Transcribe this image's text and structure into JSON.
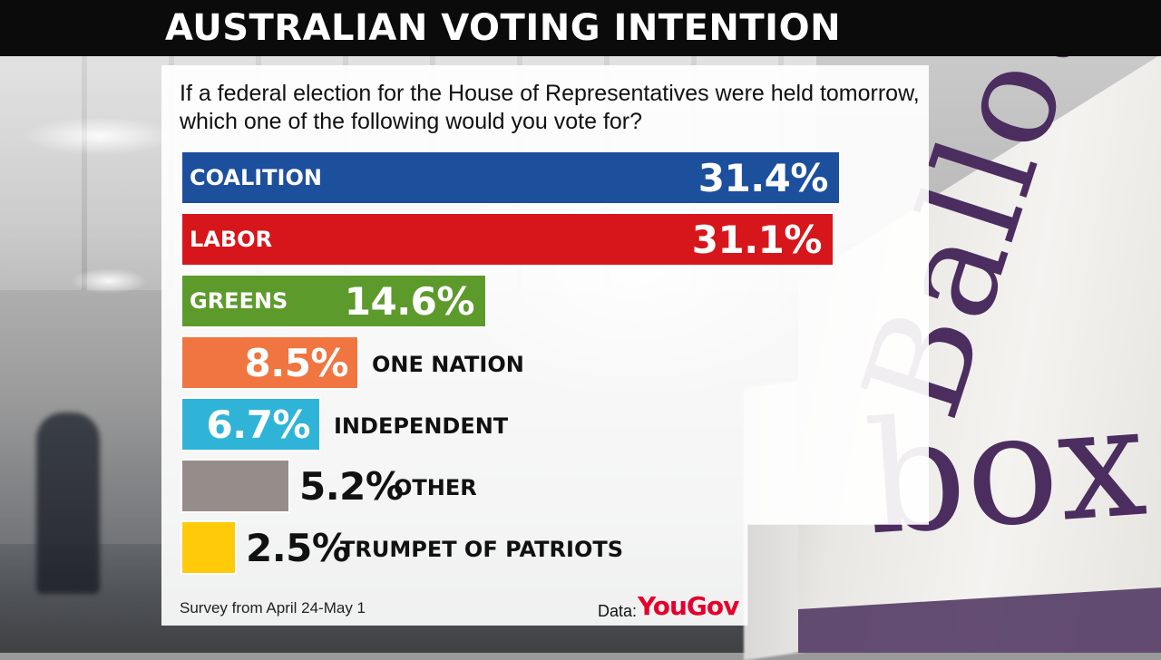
{
  "title": "AUSTRALIAN VOTING INTENTION",
  "question": "If a federal election for the House of Representatives were held tomorrow, which one of the following would you vote for?",
  "footer": {
    "survey": "Survey from April 24-May 1",
    "data_label": "Data:",
    "brand": "YouGov"
  },
  "background": {
    "ballot_word_1": "Ballot",
    "ballot_word_2": "box"
  },
  "colors": {
    "coalition": "#1c4f9c",
    "labor": "#d7161b",
    "greens": "#5d9a2c",
    "one_nation": "#f07540",
    "independent": "#2fb4d8",
    "other": "#968d8b",
    "trumpet": "#ffca0a",
    "brand": "#e4002b"
  },
  "chart_data": {
    "type": "bar",
    "orientation": "horizontal",
    "title": "AUSTRALIAN VOTING INTENTION",
    "categories": [
      "COALITION",
      "LABOR",
      "GREENS",
      "ONE NATION",
      "INDEPENDENT",
      "OTHER",
      "TRUMPET OF PATRIOTS"
    ],
    "values": [
      31.4,
      31.1,
      14.6,
      8.5,
      6.7,
      5.2,
      2.5
    ],
    "value_labels": [
      "31.4%",
      "31.1%",
      "14.6%",
      "8.5%",
      "6.7%",
      "5.2%",
      "2.5%"
    ],
    "unit": "%",
    "grid": false,
    "legend": "none"
  }
}
